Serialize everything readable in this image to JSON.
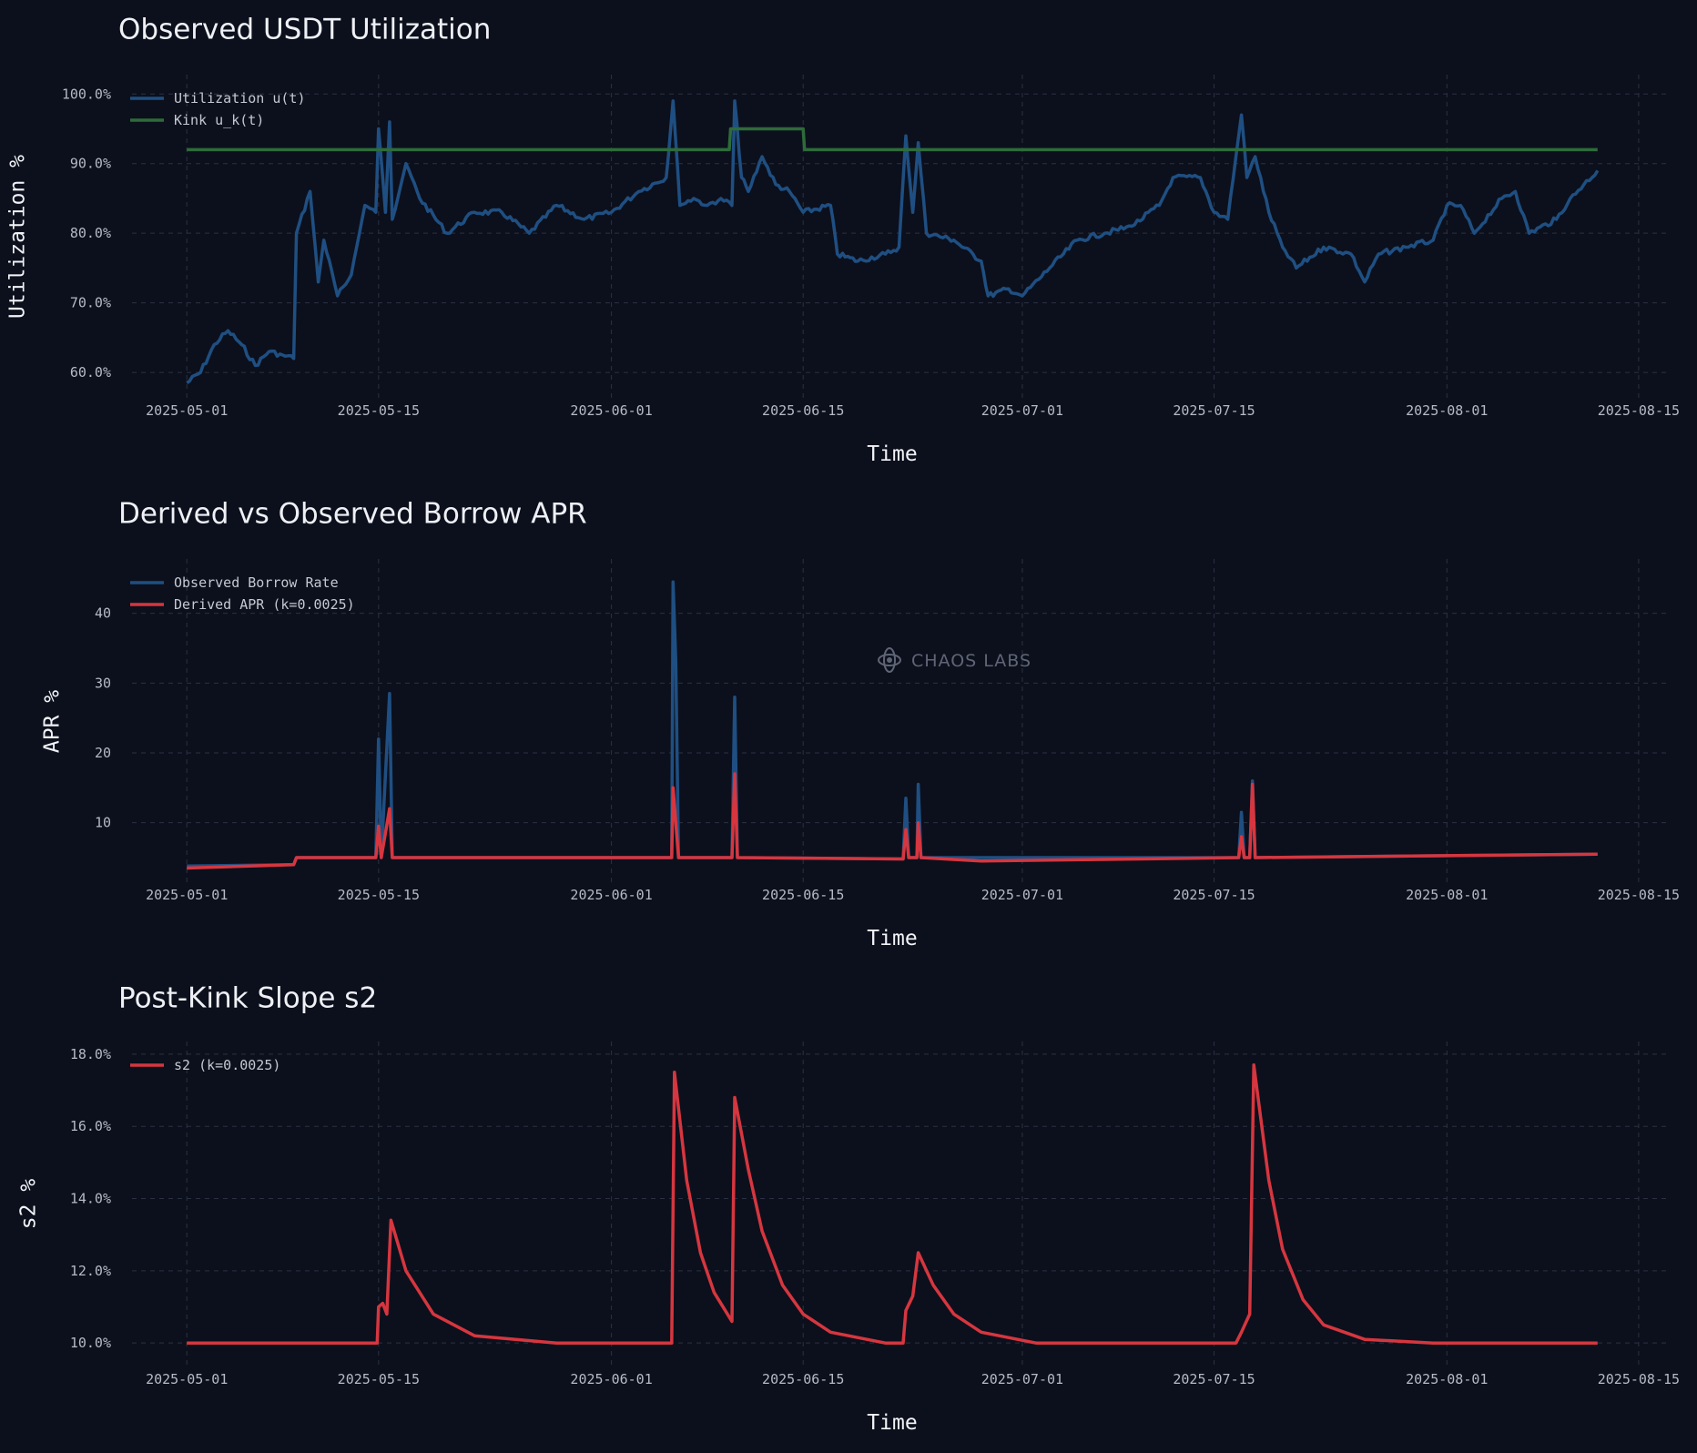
{
  "watermark": "CHAOS LABS",
  "colors": {
    "blue": "#1f4f82",
    "green": "#2e6b3a",
    "red": "#d6363f"
  },
  "chart_data": [
    {
      "type": "line",
      "title": "Observed USDT Utilization",
      "xlabel": "Time",
      "ylabel": "Utilization %",
      "x_ticks": [
        "2025-05-01",
        "2025-05-15",
        "2025-06-01",
        "2025-06-15",
        "2025-07-01",
        "2025-07-15",
        "2025-08-01",
        "2025-08-15"
      ],
      "y_ticks": [
        "60.0%",
        "70.0%",
        "80.0%",
        "90.0%",
        "100.0%"
      ],
      "ylim": [
        57,
        102
      ],
      "xlim": [
        "2025-04-26",
        "2025-08-17"
      ],
      "legend": "top-left",
      "grid": true,
      "series": [
        {
          "name": "Utilization u(t)",
          "color": "#1f4f82",
          "points": [
            [
              "2025-05-01",
              58.5
            ],
            [
              "2025-05-02",
              60
            ],
            [
              "2025-05-03",
              64
            ],
            [
              "2025-05-04",
              66
            ],
            [
              "2025-05-05",
              64
            ],
            [
              "2025-05-06",
              61
            ],
            [
              "2025-05-07",
              63
            ],
            [
              "2025-05-08",
              62.5
            ],
            [
              "2025-05-08.8",
              62
            ],
            [
              "2025-05-09",
              80
            ],
            [
              "2025-05-10",
              86
            ],
            [
              "2025-05-10.6",
              73
            ],
            [
              "2025-05-11",
              79
            ],
            [
              "2025-05-12",
              71
            ],
            [
              "2025-05-13",
              74
            ],
            [
              "2025-05-14",
              84
            ],
            [
              "2025-05-14.8",
              83
            ],
            [
              "2025-05-15",
              95
            ],
            [
              "2025-05-15.5",
              83
            ],
            [
              "2025-05-15.8",
              96
            ],
            [
              "2025-05-16",
              82
            ],
            [
              "2025-05-17",
              90
            ],
            [
              "2025-05-18",
              85
            ],
            [
              "2025-05-20",
              80
            ],
            [
              "2025-05-22",
              83
            ],
            [
              "2025-05-24",
              83
            ],
            [
              "2025-05-26",
              80
            ],
            [
              "2025-05-28",
              84
            ],
            [
              "2025-05-30",
              82
            ],
            [
              "2025-06-01",
              83
            ],
            [
              "2025-06-03",
              86
            ],
            [
              "2025-06-05",
              88
            ],
            [
              "2025-06-05.5",
              99
            ],
            [
              "2025-06-06",
              84
            ],
            [
              "2025-06-07",
              85
            ],
            [
              "2025-06-08",
              84
            ],
            [
              "2025-06-09",
              85
            ],
            [
              "2025-06-09.8",
              84
            ],
            [
              "2025-06-10",
              99
            ],
            [
              "2025-06-10.5",
              88
            ],
            [
              "2025-06-11",
              86
            ],
            [
              "2025-06-12",
              91
            ],
            [
              "2025-06-13",
              87
            ],
            [
              "2025-06-14",
              86
            ],
            [
              "2025-06-15",
              83
            ],
            [
              "2025-06-17",
              84
            ],
            [
              "2025-06-17.5",
              77
            ],
            [
              "2025-06-19",
              76
            ],
            [
              "2025-06-21",
              77
            ],
            [
              "2025-06-22",
              78
            ],
            [
              "2025-06-22.5",
              94
            ],
            [
              "2025-06-23",
              83
            ],
            [
              "2025-06-23.4",
              93
            ],
            [
              "2025-06-24",
              80
            ],
            [
              "2025-06-26",
              79
            ],
            [
              "2025-06-28",
              76
            ],
            [
              "2025-06-28.5",
              71
            ],
            [
              "2025-06-30",
              72
            ],
            [
              "2025-07-01",
              71
            ],
            [
              "2025-07-03",
              75
            ],
            [
              "2025-07-05",
              79
            ],
            [
              "2025-07-07",
              80
            ],
            [
              "2025-07-09",
              81
            ],
            [
              "2025-07-11",
              84
            ],
            [
              "2025-07-12",
              88
            ],
            [
              "2025-07-14",
              88
            ],
            [
              "2025-07-15",
              83
            ],
            [
              "2025-07-16",
              82
            ],
            [
              "2025-07-17",
              97
            ],
            [
              "2025-07-17.4",
              88
            ],
            [
              "2025-07-18",
              91
            ],
            [
              "2025-07-19",
              83
            ],
            [
              "2025-07-20",
              78
            ],
            [
              "2025-07-21",
              75
            ],
            [
              "2025-07-23",
              78
            ],
            [
              "2025-07-25",
              77
            ],
            [
              "2025-07-26",
              73
            ],
            [
              "2025-07-27",
              77
            ],
            [
              "2025-07-29",
              78
            ],
            [
              "2025-07-31",
              79
            ],
            [
              "2025-08-01",
              84
            ],
            [
              "2025-08-02",
              84
            ],
            [
              "2025-08-03",
              80
            ],
            [
              "2025-08-05",
              85
            ],
            [
              "2025-08-06",
              86
            ],
            [
              "2025-08-07",
              80
            ],
            [
              "2025-08-09",
              82
            ],
            [
              "2025-08-10",
              85
            ],
            [
              "2025-08-11",
              87
            ],
            [
              "2025-08-12",
              89
            ]
          ]
        },
        {
          "name": "Kink u_k(t)",
          "color": "#2e6b3a",
          "points": [
            [
              "2025-05-01",
              92
            ],
            [
              "2025-06-09.6",
              92
            ],
            [
              "2025-06-09.7",
              95
            ],
            [
              "2025-06-15",
              95
            ],
            [
              "2025-06-15.1",
              92
            ],
            [
              "2025-08-12",
              92
            ]
          ]
        }
      ]
    },
    {
      "type": "line",
      "title": "Derived vs Observed Borrow APR",
      "xlabel": "Time",
      "ylabel": "APR %",
      "x_ticks": [
        "2025-05-01",
        "2025-05-15",
        "2025-06-01",
        "2025-06-15",
        "2025-07-01",
        "2025-07-15",
        "2025-08-01",
        "2025-08-15"
      ],
      "y_ticks": [
        "10",
        "20",
        "30",
        "40"
      ],
      "ylim": [
        2,
        47
      ],
      "xlim": [
        "2025-04-26",
        "2025-08-17"
      ],
      "legend": "top-left",
      "grid": true,
      "series": [
        {
          "name": "Observed Borrow Rate",
          "color": "#1f4f82",
          "points": [
            [
              "2025-05-01",
              3.8
            ],
            [
              "2025-05-08.8",
              4
            ],
            [
              "2025-05-09",
              5
            ],
            [
              "2025-05-14.8",
              5
            ],
            [
              "2025-05-15",
              22
            ],
            [
              "2025-05-15.2",
              5
            ],
            [
              "2025-05-15.8",
              28.5
            ],
            [
              "2025-05-16",
              5
            ],
            [
              "2025-06-05.4",
              5
            ],
            [
              "2025-06-05.5",
              44.5
            ],
            [
              "2025-06-05.7",
              33
            ],
            [
              "2025-06-05.9",
              5
            ],
            [
              "2025-06-09.8",
              5
            ],
            [
              "2025-06-10",
              28
            ],
            [
              "2025-06-10.2",
              5
            ],
            [
              "2025-06-22.3",
              4.8
            ],
            [
              "2025-06-22.5",
              13.5
            ],
            [
              "2025-06-22.7",
              5
            ],
            [
              "2025-06-23.3",
              5
            ],
            [
              "2025-06-23.4",
              15.5
            ],
            [
              "2025-06-23.6",
              5
            ],
            [
              "2025-07-16.8",
              5
            ],
            [
              "2025-07-17",
              11.5
            ],
            [
              "2025-07-17.2",
              5
            ],
            [
              "2025-07-17.6",
              5
            ],
            [
              "2025-07-17.8",
              16
            ],
            [
              "2025-07-18",
              5
            ],
            [
              "2025-08-12",
              5.5
            ]
          ]
        },
        {
          "name": "Derived APR (k=0.0025)",
          "color": "#d6363f",
          "points": [
            [
              "2025-05-01",
              3.5
            ],
            [
              "2025-05-08.8",
              4
            ],
            [
              "2025-05-09",
              5
            ],
            [
              "2025-05-14.8",
              5
            ],
            [
              "2025-05-15",
              9.5
            ],
            [
              "2025-05-15.2",
              5
            ],
            [
              "2025-05-15.8",
              12
            ],
            [
              "2025-05-16",
              5
            ],
            [
              "2025-06-05.4",
              5
            ],
            [
              "2025-06-05.5",
              15
            ],
            [
              "2025-06-05.9",
              5
            ],
            [
              "2025-06-09.8",
              5
            ],
            [
              "2025-06-10",
              17
            ],
            [
              "2025-06-10.2",
              5
            ],
            [
              "2025-06-22.3",
              4.8
            ],
            [
              "2025-06-22.5",
              9
            ],
            [
              "2025-06-22.7",
              5
            ],
            [
              "2025-06-23.3",
              5
            ],
            [
              "2025-06-23.4",
              10
            ],
            [
              "2025-06-23.6",
              5
            ],
            [
              "2025-06-28",
              4.5
            ],
            [
              "2025-07-16.8",
              5
            ],
            [
              "2025-07-17",
              8
            ],
            [
              "2025-07-17.2",
              5
            ],
            [
              "2025-07-17.6",
              5
            ],
            [
              "2025-07-17.8",
              15.5
            ],
            [
              "2025-07-18",
              5
            ],
            [
              "2025-08-12",
              5.5
            ]
          ]
        }
      ]
    },
    {
      "type": "line",
      "title": "Post-Kink Slope s2",
      "xlabel": "Time",
      "ylabel": "s2 %",
      "x_ticks": [
        "2025-05-01",
        "2025-05-15",
        "2025-06-01",
        "2025-06-15",
        "2025-07-01",
        "2025-07-15",
        "2025-08-01",
        "2025-08-15"
      ],
      "y_ticks": [
        "10.0%",
        "12.0%",
        "14.0%",
        "16.0%",
        "18.0%"
      ],
      "ylim": [
        9.5,
        18.2
      ],
      "xlim": [
        "2025-04-26",
        "2025-08-17"
      ],
      "legend": "top-left",
      "grid": true,
      "series": [
        {
          "name": "s2 (k=0.0025)",
          "color": "#d6363f",
          "points": [
            [
              "2025-05-01",
              10
            ],
            [
              "2025-05-14.9",
              10
            ],
            [
              "2025-05-15",
              11
            ],
            [
              "2025-05-15.3",
              11.1
            ],
            [
              "2025-05-15.6",
              10.8
            ],
            [
              "2025-05-15.9",
              13.4
            ],
            [
              "2025-05-17",
              12
            ],
            [
              "2025-05-19",
              10.8
            ],
            [
              "2025-05-22",
              10.2
            ],
            [
              "2025-05-28",
              10
            ],
            [
              "2025-06-05.4",
              10
            ],
            [
              "2025-06-05.6",
              17.5
            ],
            [
              "2025-06-06.5",
              14.5
            ],
            [
              "2025-06-07.5",
              12.5
            ],
            [
              "2025-06-08.5",
              11.4
            ],
            [
              "2025-06-09.8",
              10.6
            ],
            [
              "2025-06-10",
              16.8
            ],
            [
              "2025-06-11",
              14.8
            ],
            [
              "2025-06-12",
              13.1
            ],
            [
              "2025-06-13.5",
              11.6
            ],
            [
              "2025-06-15",
              10.8
            ],
            [
              "2025-06-17",
              10.3
            ],
            [
              "2025-06-21",
              10
            ],
            [
              "2025-06-22.3",
              10
            ],
            [
              "2025-06-22.5",
              10.9
            ],
            [
              "2025-06-23",
              11.3
            ],
            [
              "2025-06-23.4",
              12.5
            ],
            [
              "2025-06-24.5",
              11.6
            ],
            [
              "2025-06-26",
              10.8
            ],
            [
              "2025-06-28",
              10.3
            ],
            [
              "2025-07-02",
              10
            ],
            [
              "2025-07-16.6",
              10
            ],
            [
              "2025-07-17",
              10.3
            ],
            [
              "2025-07-17.6",
              10.8
            ],
            [
              "2025-07-17.9",
              17.7
            ],
            [
              "2025-07-19",
              14.5
            ],
            [
              "2025-07-20",
              12.6
            ],
            [
              "2025-07-21.5",
              11.2
            ],
            [
              "2025-07-23",
              10.5
            ],
            [
              "2025-07-26",
              10.1
            ],
            [
              "2025-07-31",
              10
            ],
            [
              "2025-08-12",
              10
            ]
          ]
        }
      ]
    }
  ]
}
